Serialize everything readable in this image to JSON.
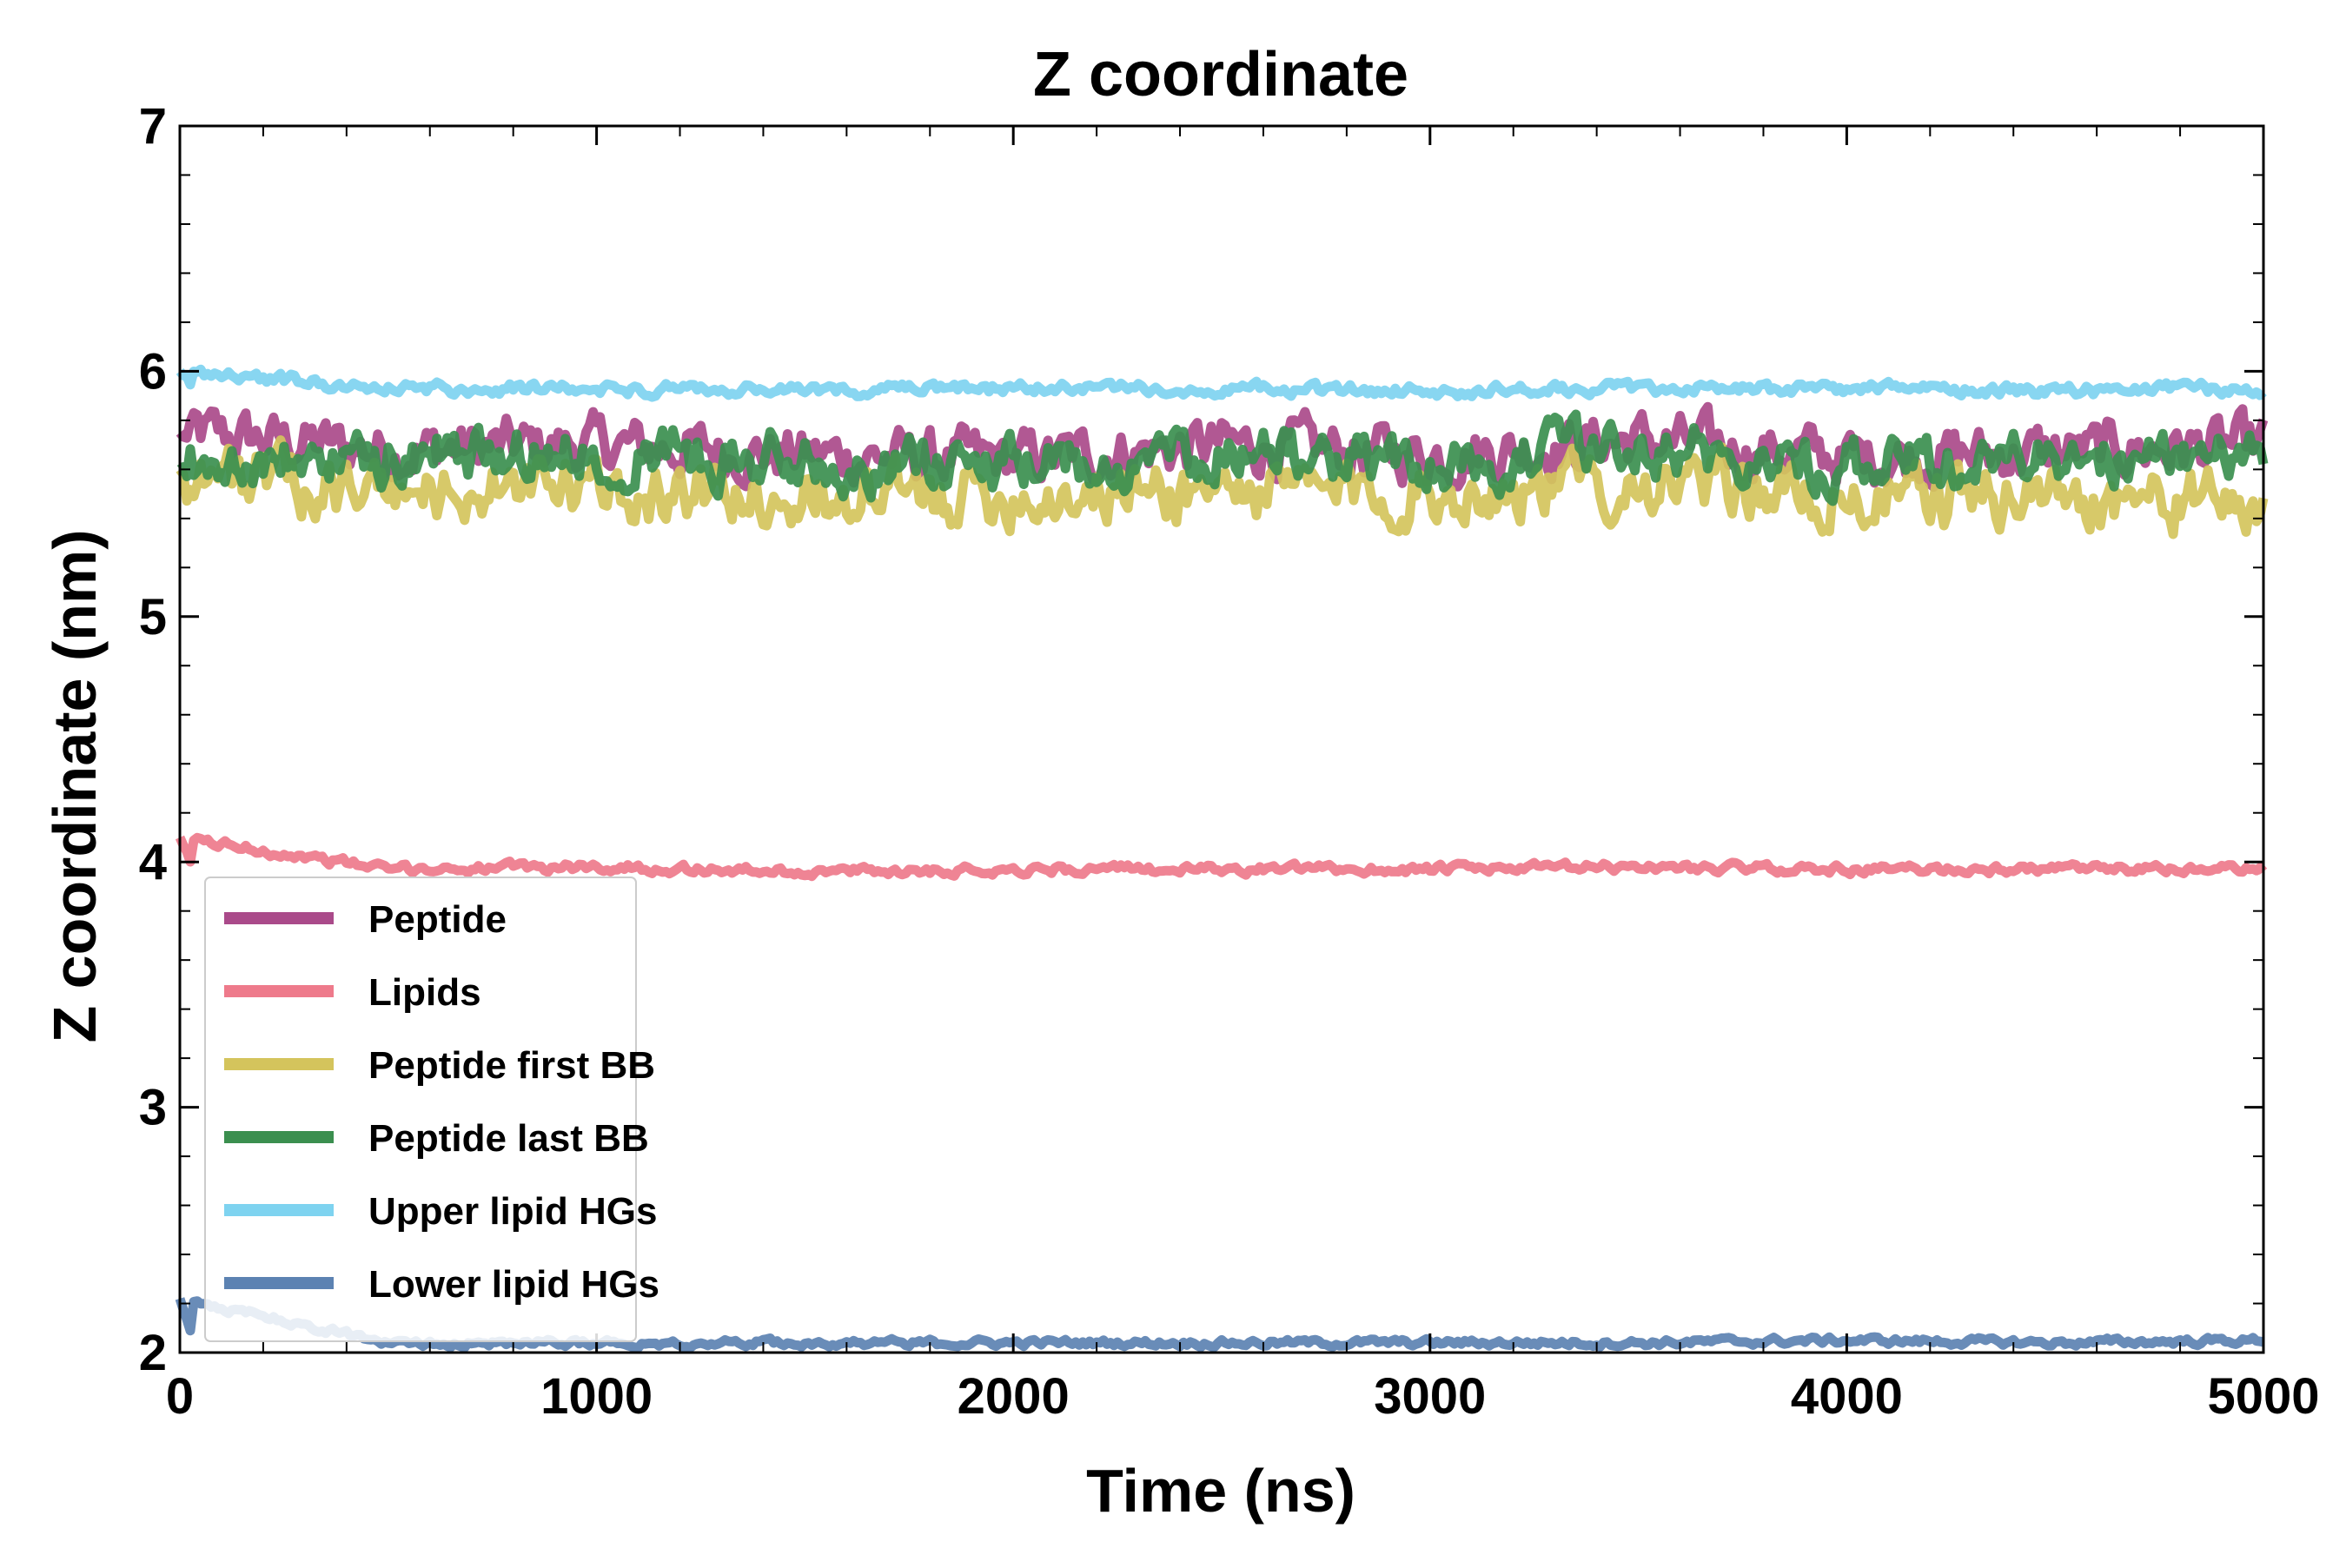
{
  "chart_data": {
    "type": "line",
    "title": "Z coordinate",
    "xlabel": "Time (ns)",
    "ylabel": "Z coordinate (nm)",
    "xlim": [
      0,
      5000
    ],
    "ylim": [
      2,
      7
    ],
    "xticks": [
      0,
      1000,
      2000,
      3000,
      4000,
      5000
    ],
    "yticks": [
      2,
      3,
      4,
      5,
      6,
      7
    ],
    "grid": false,
    "legend_position": "lower-left",
    "series": [
      {
        "name": "Peptide",
        "color": "#aa4a8a",
        "mean": 5.68,
        "noise": 0.09,
        "x": [
          0,
          500,
          1000,
          1500,
          2000,
          2500,
          3000,
          3500,
          4000,
          4500,
          5000
        ],
        "values": [
          5.75,
          5.68,
          5.7,
          5.66,
          5.64,
          5.7,
          5.66,
          5.72,
          5.65,
          5.67,
          5.7
        ]
      },
      {
        "name": "Lipids",
        "color": "#ee7a8b",
        "mean": 3.97,
        "noise": 0.015,
        "x": [
          0,
          500,
          1000,
          1500,
          2000,
          2500,
          3000,
          3500,
          4000,
          4500,
          5000
        ],
        "values": [
          4.1,
          3.97,
          3.98,
          3.96,
          3.97,
          3.97,
          3.97,
          3.98,
          3.97,
          3.97,
          3.97
        ]
      },
      {
        "name": "Peptide first BB",
        "color": "#d4c45c",
        "mean": 5.52,
        "noise": 0.1,
        "x": [
          0,
          500,
          1000,
          1500,
          2000,
          2500,
          3000,
          3500,
          4000,
          4500,
          5000
        ],
        "values": [
          5.6,
          5.5,
          5.52,
          5.48,
          5.5,
          5.52,
          5.5,
          5.55,
          5.48,
          5.5,
          5.45
        ]
      },
      {
        "name": "Peptide last BB",
        "color": "#3b8f4f",
        "mean": 5.64,
        "noise": 0.09,
        "x": [
          0,
          500,
          1000,
          1500,
          2000,
          2500,
          3000,
          3500,
          4000,
          4500,
          5000
        ],
        "values": [
          5.6,
          5.65,
          5.68,
          5.63,
          5.6,
          5.68,
          5.62,
          5.7,
          5.62,
          5.64,
          5.65
        ]
      },
      {
        "name": "Upper lipid HGs",
        "color": "#7ed3f0",
        "mean": 5.93,
        "noise": 0.02,
        "x": [
          0,
          500,
          1000,
          1500,
          2000,
          2500,
          3000,
          3500,
          4000,
          4500,
          5000
        ],
        "values": [
          6.0,
          5.93,
          5.93,
          5.92,
          5.93,
          5.93,
          5.92,
          5.93,
          5.93,
          5.92,
          5.93
        ]
      },
      {
        "name": "Lower lipid HGs",
        "color": "#5c82b2",
        "mean": 2.04,
        "noise": 0.012,
        "x": [
          0,
          500,
          1000,
          1500,
          2000,
          2500,
          3000,
          3500,
          4000,
          4500,
          5000
        ],
        "values": [
          2.22,
          2.04,
          2.04,
          2.04,
          2.04,
          2.04,
          2.04,
          2.04,
          2.05,
          2.04,
          2.05
        ]
      }
    ]
  }
}
